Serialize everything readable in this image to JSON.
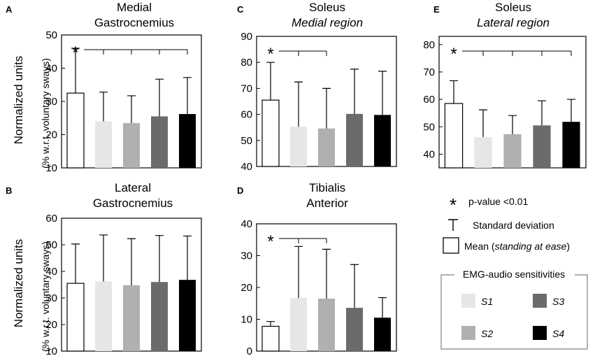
{
  "chart_data": [
    {
      "id": "A",
      "type": "bar",
      "panel_letter": "A",
      "title_lines": [
        {
          "text": "Medial",
          "italic": false
        },
        {
          "text": "Gastrocnemius",
          "italic": false
        }
      ],
      "ylabel_lines": [
        "Normalized units",
        "(% w.r.t. voluntary sways)"
      ],
      "ylim": [
        10,
        50
      ],
      "yticks": [
        "10",
        "20",
        "30",
        "40",
        "50"
      ],
      "categories": [
        "Mean",
        "S1",
        "S2",
        "S3",
        "S4"
      ],
      "values": [
        32.5,
        24,
        23.5,
        25.5,
        26.2
      ],
      "errors": [
        13.5,
        8.8,
        8.2,
        11.2,
        11
      ],
      "significance": {
        "marker": "*",
        "from": "Mean",
        "to": [
          "S1",
          "S2",
          "S3",
          "S4"
        ]
      }
    },
    {
      "id": "B",
      "type": "bar",
      "panel_letter": "B",
      "title_lines": [
        {
          "text": "Lateral",
          "italic": false
        },
        {
          "text": "Gastrocnemius",
          "italic": false
        }
      ],
      "ylabel_lines": [
        "Normalized units",
        "(% w.r.t. voluntary sways)"
      ],
      "ylim": [
        10,
        60
      ],
      "yticks": [
        "10",
        "20",
        "30",
        "40",
        "50",
        "60"
      ],
      "categories": [
        "Mean",
        "S1",
        "S2",
        "S3",
        "S4"
      ],
      "values": [
        35.5,
        36.2,
        34.8,
        36,
        36.8
      ],
      "errors": [
        14.8,
        17.5,
        17.5,
        17.5,
        16.5
      ],
      "significance": null
    },
    {
      "id": "C",
      "type": "bar",
      "panel_letter": "C",
      "title_lines": [
        {
          "text": "Soleus",
          "italic": false
        },
        {
          "text": "Medial region",
          "italic": true
        }
      ],
      "ylim": [
        40,
        90
      ],
      "yticks": [
        "40",
        "50",
        "60",
        "70",
        "80",
        "90"
      ],
      "categories": [
        "Mean",
        "S1",
        "S2",
        "S3",
        "S4"
      ],
      "values": [
        65.5,
        55.3,
        54.6,
        60.2,
        59.8
      ],
      "errors": [
        14.5,
        17.2,
        15.4,
        17.2,
        16.8
      ],
      "significance": {
        "marker": "*",
        "from": "Mean",
        "to": [
          "S1",
          "S2"
        ]
      }
    },
    {
      "id": "D",
      "type": "bar",
      "panel_letter": "D",
      "title_lines": [
        {
          "text": "Tibialis",
          "italic": false
        },
        {
          "text": "Anterior",
          "italic": false
        }
      ],
      "ylim": [
        0,
        40
      ],
      "yticks": [
        "0",
        "10",
        "20",
        "30",
        "40"
      ],
      "categories": [
        "Mean",
        "S1",
        "S2",
        "S3",
        "S4"
      ],
      "values": [
        7.8,
        16.7,
        16.5,
        13.6,
        10.5
      ],
      "errors": [
        1.5,
        16.2,
        15.5,
        13.6,
        6.3
      ],
      "significance": {
        "marker": "*",
        "from": "Mean",
        "to": [
          "S1",
          "S2"
        ]
      }
    },
    {
      "id": "E",
      "type": "bar",
      "panel_letter": "E",
      "title_lines": [
        {
          "text": "Soleus",
          "italic": false
        },
        {
          "text": "Lateral region",
          "italic": true
        }
      ],
      "ylim": [
        35,
        83
      ],
      "yticks": [
        "40",
        "50",
        "60",
        "70",
        "80"
      ],
      "categories": [
        "Mean",
        "S1",
        "S2",
        "S3",
        "S4"
      ],
      "values": [
        58.5,
        46.2,
        47.3,
        50.5,
        51.8
      ],
      "errors": [
        8.3,
        10,
        6.8,
        9,
        8.2
      ],
      "significance": {
        "marker": "*",
        "from": "Mean",
        "to": [
          "S1",
          "S2",
          "S3",
          "S4"
        ]
      }
    }
  ],
  "bar_colors": [
    "#ffffff",
    "#e6e6e6",
    "#b0b0b0",
    "#6b6b6b",
    "#000000"
  ],
  "legend": {
    "star_symbol": "*",
    "pvalue_label": "p-value <0.01",
    "sd_label": "Standard deviation",
    "mean_label": "Mean (",
    "mean_label_italic": "standing at ease",
    "mean_label_close": ")",
    "sensitivity_title": "EMG-audio sensitivities",
    "sensitivities": [
      "S1",
      "S2",
      "S3",
      "S4"
    ]
  }
}
